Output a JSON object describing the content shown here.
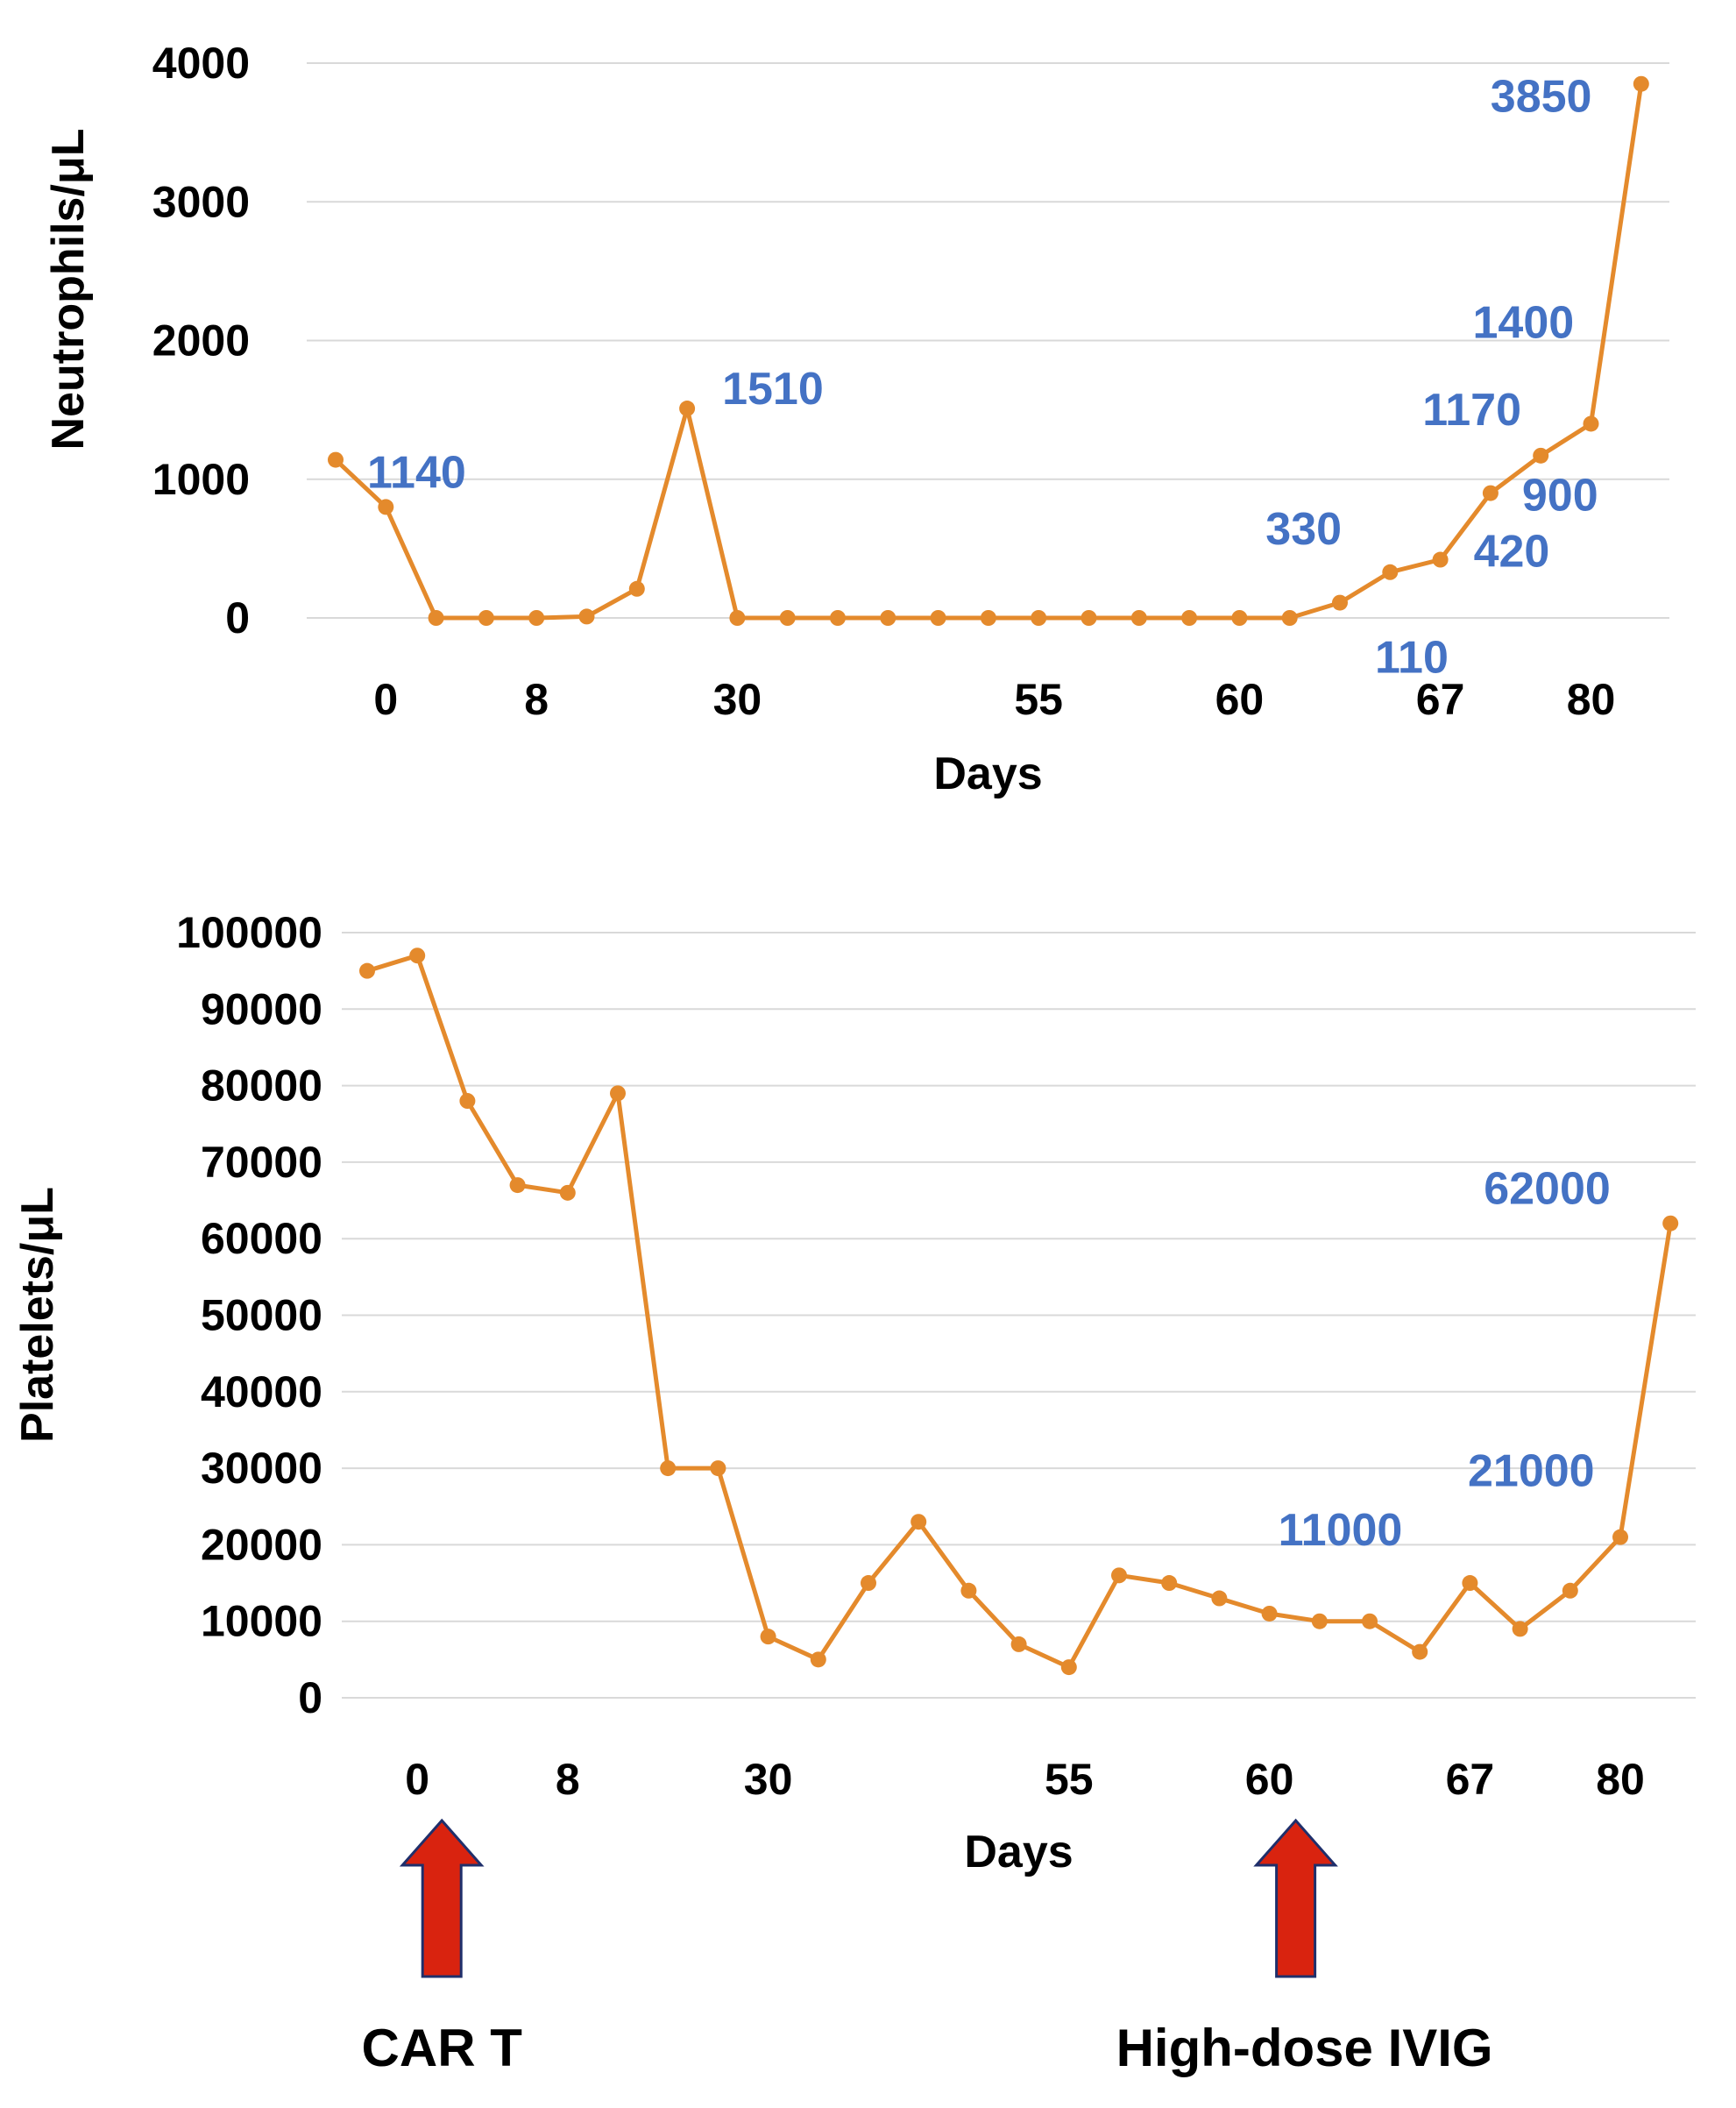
{
  "colors": {
    "line": "#e48a2c",
    "annotation": "#4472c4",
    "arrow": "#d9230f",
    "arrow_outline": "#1f2f6b",
    "grid": "#d9d9d9"
  },
  "chart_data": [
    {
      "type": "line",
      "ylabel": "Neutrophils/μL",
      "xlabel": "Days",
      "ylim": [
        0,
        4000
      ],
      "y_ticks": [
        "0",
        "1000",
        "2000",
        "3000",
        "4000"
      ],
      "x_tick_labels": [
        {
          "index": 1,
          "label": "0"
        },
        {
          "index": 4,
          "label": "8"
        },
        {
          "index": 8,
          "label": "30"
        },
        {
          "index": 14,
          "label": "55"
        },
        {
          "index": 18,
          "label": "60"
        },
        {
          "index": 22,
          "label": "67"
        },
        {
          "index": 25,
          "label": "80"
        }
      ],
      "grid": true,
      "series": [
        {
          "values": [
            1140,
            800,
            0,
            0,
            0,
            10,
            210,
            1510,
            0,
            0,
            0,
            0,
            0,
            0,
            0,
            0,
            0,
            0,
            0,
            0,
            110,
            330,
            420,
            900,
            1170,
            1400,
            3850
          ]
        }
      ],
      "annotations": [
        {
          "text": "1140",
          "index": 0
        },
        {
          "text": "1510",
          "index": 7
        },
        {
          "text": "330",
          "index": 21
        },
        {
          "text": "110",
          "index": 20
        },
        {
          "text": "420",
          "index": 22
        },
        {
          "text": "900",
          "index": 23
        },
        {
          "text": "1170",
          "index": 24
        },
        {
          "text": "1400",
          "index": 25
        },
        {
          "text": "3850",
          "index": 26
        }
      ]
    },
    {
      "type": "line",
      "ylabel": "Platelets/μL",
      "xlabel": "Days",
      "ylim": [
        0,
        100000
      ],
      "y_ticks": [
        "0",
        "10000",
        "20000",
        "30000",
        "40000",
        "50000",
        "60000",
        "70000",
        "80000",
        "90000",
        "100000"
      ],
      "x_tick_labels": [
        {
          "index": 1,
          "label": "0"
        },
        {
          "index": 4,
          "label": "8"
        },
        {
          "index": 8,
          "label": "30"
        },
        {
          "index": 14,
          "label": "55"
        },
        {
          "index": 18,
          "label": "60"
        },
        {
          "index": 22,
          "label": "67"
        },
        {
          "index": 25,
          "label": "80"
        }
      ],
      "grid": true,
      "series": [
        {
          "values": [
            95000,
            97000,
            78000,
            67000,
            66000,
            79000,
            30000,
            30000,
            8000,
            5000,
            15000,
            23000,
            14000,
            7000,
            4000,
            16000,
            15000,
            13000,
            11000,
            10000,
            10000,
            6000,
            15000,
            9000,
            14000,
            21000,
            62000
          ]
        }
      ],
      "annotations": [
        {
          "text": "11000",
          "index": 18
        },
        {
          "text": "21000",
          "index": 25
        },
        {
          "text": "62000",
          "index": 26
        }
      ],
      "markers": [
        {
          "text": "CAR T",
          "index": 1
        },
        {
          "text": "High-dose IVIG",
          "index": 18
        }
      ]
    }
  ]
}
